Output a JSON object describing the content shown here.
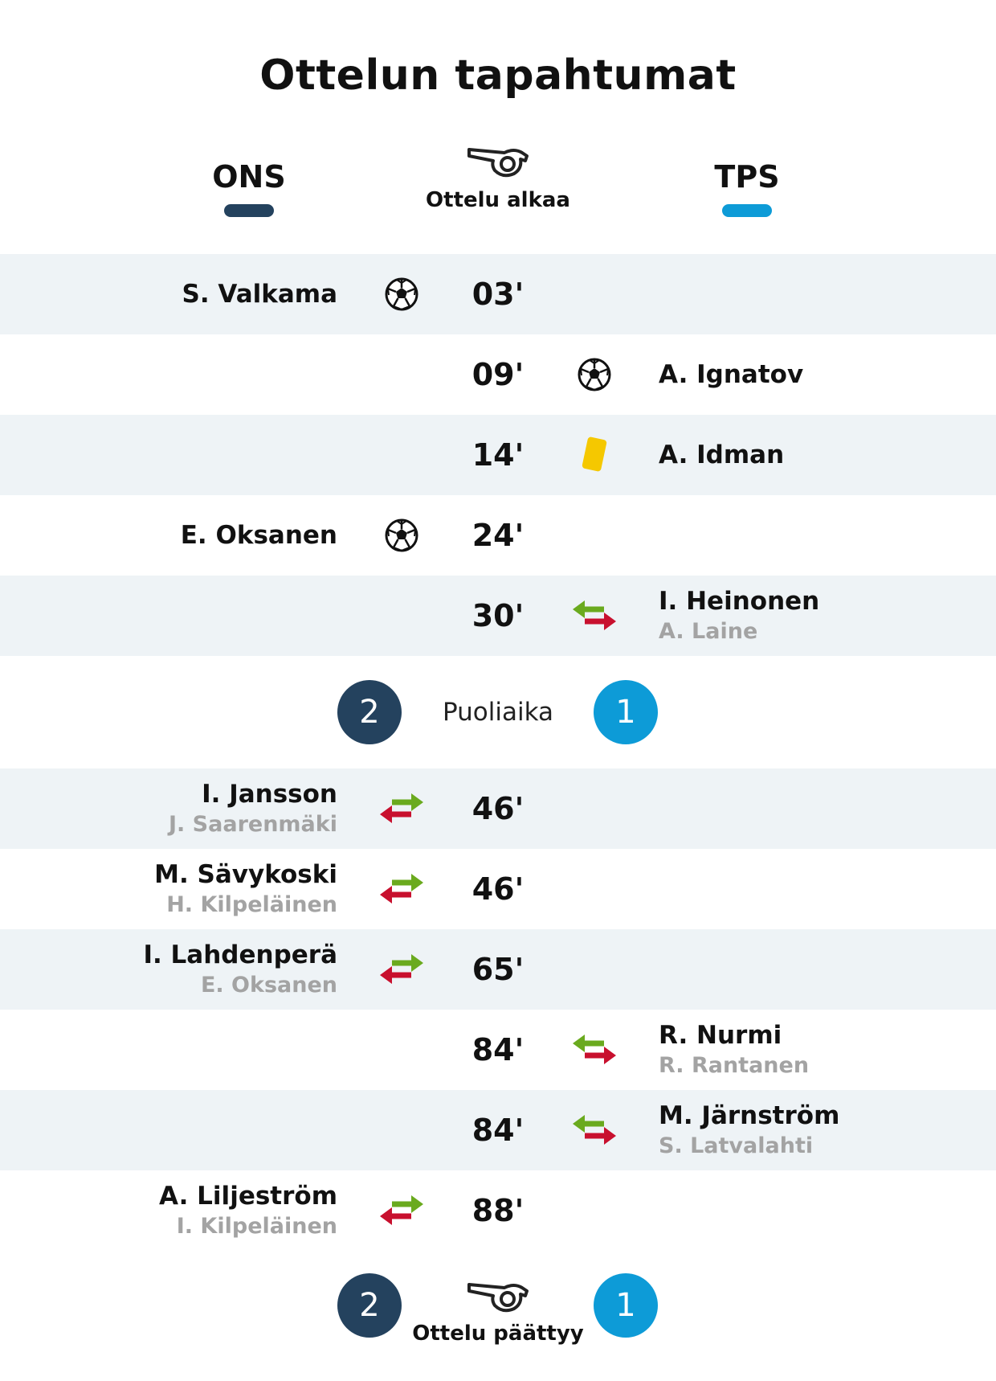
{
  "title": "Ottelun tapahtumat",
  "teams": {
    "home": {
      "abbr": "ONS",
      "color": "#24425e"
    },
    "away": {
      "abbr": "TPS",
      "color": "#0d9bd7"
    }
  },
  "kickoff_label": "Ottelu alkaa",
  "events_first_half": [
    {
      "minute": "03'",
      "side": "home",
      "type": "goal",
      "icon": "football-icon",
      "player": "S. Valkama",
      "player_out": ""
    },
    {
      "minute": "09'",
      "side": "away",
      "type": "goal",
      "icon": "football-icon",
      "player": "A. Ignatov",
      "player_out": ""
    },
    {
      "minute": "14'",
      "side": "away",
      "type": "yellow-card",
      "icon": "yellow-card-icon",
      "player": "A. Idman",
      "player_out": ""
    },
    {
      "minute": "24'",
      "side": "home",
      "type": "goal",
      "icon": "football-icon",
      "player": "E. Oksanen",
      "player_out": ""
    },
    {
      "minute": "30'",
      "side": "away",
      "type": "substitution",
      "icon": "substitution-icon",
      "player": "I. Heinonen",
      "player_out": "A. Laine"
    }
  ],
  "halftime": {
    "label": "Puoliaika",
    "home_score": "2",
    "away_score": "1"
  },
  "events_second_half": [
    {
      "minute": "46'",
      "side": "home",
      "type": "substitution",
      "icon": "substitution-icon",
      "player": "I. Jansson",
      "player_out": "J. Saarenmäki"
    },
    {
      "minute": "46'",
      "side": "home",
      "type": "substitution",
      "icon": "substitution-icon",
      "player": "M. Sävykoski",
      "player_out": "H. Kilpeläinen"
    },
    {
      "minute": "65'",
      "side": "home",
      "type": "substitution",
      "icon": "substitution-icon",
      "player": "I. Lahdenperä",
      "player_out": "E. Oksanen"
    },
    {
      "minute": "84'",
      "side": "away",
      "type": "substitution",
      "icon": "substitution-icon",
      "player": "R. Nurmi",
      "player_out": "R. Rantanen"
    },
    {
      "minute": "84'",
      "side": "away",
      "type": "substitution",
      "icon": "substitution-icon",
      "player": "M. Järnström",
      "player_out": "S. Latvalahti"
    },
    {
      "minute": "88'",
      "side": "home",
      "type": "substitution",
      "icon": "substitution-icon",
      "player": "A. Liljeström",
      "player_out": "I. Kilpeläinen"
    }
  ],
  "fulltime": {
    "label": "Ottelu päättyy",
    "home_score": "2",
    "away_score": "1"
  },
  "colors": {
    "row_shade": "#eef3f6",
    "sub_in_arrow": "#6aaa1e",
    "sub_out_arrow": "#c8102e",
    "yellow_card": "#f5c800"
  }
}
